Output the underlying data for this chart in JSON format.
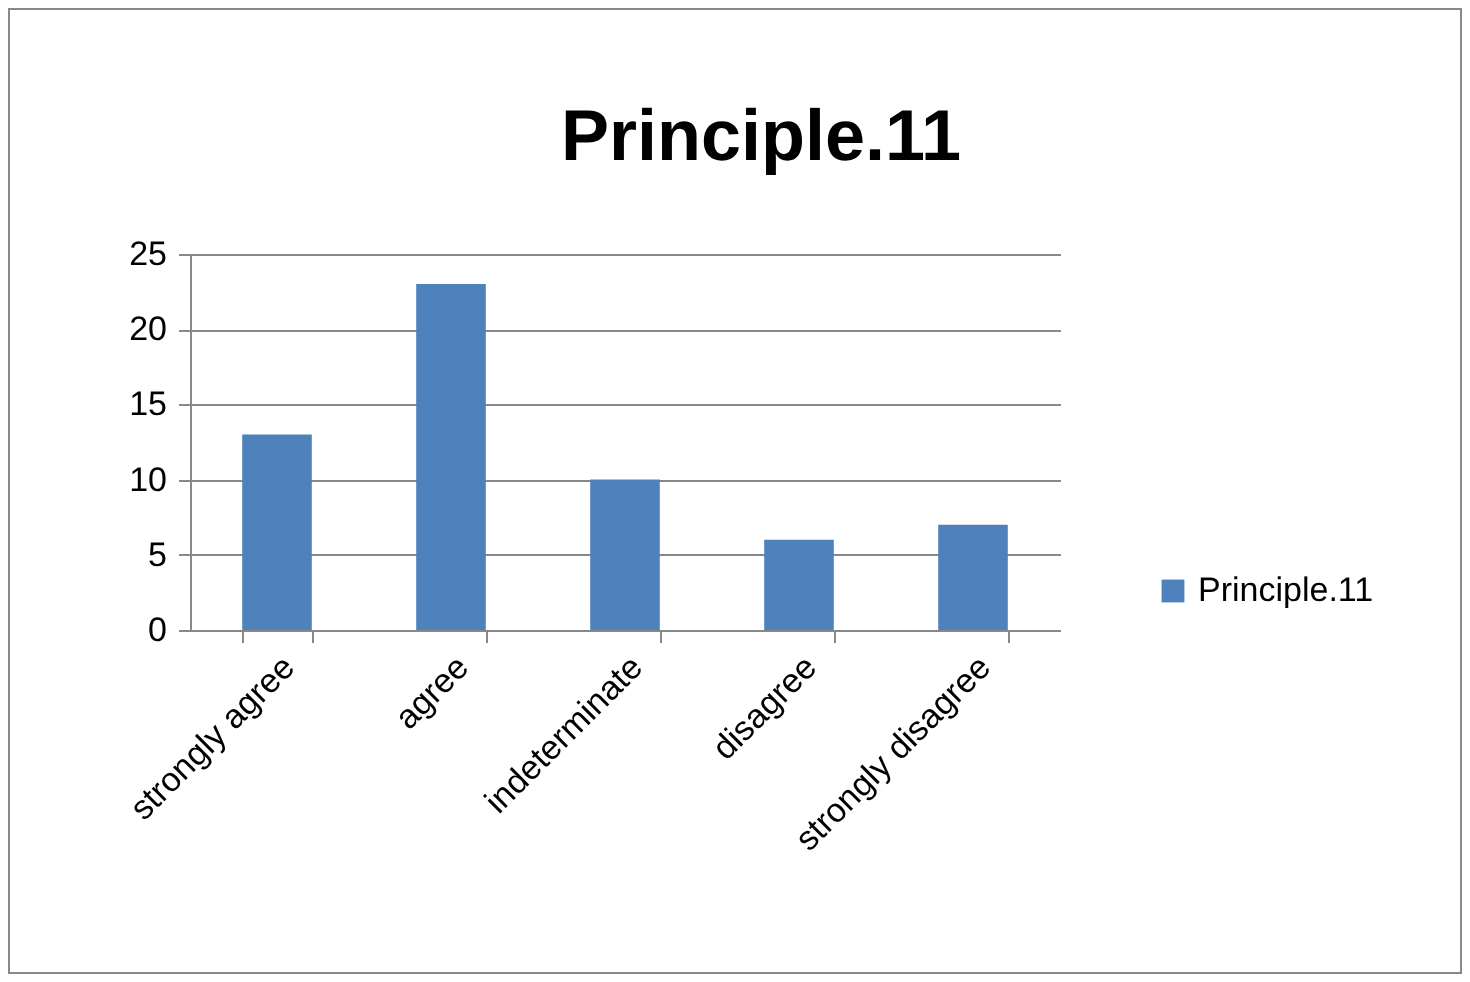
{
  "chart_data": {
    "type": "bar",
    "title": "Principle.11",
    "categories": [
      "strongly agree",
      "agree",
      "indeterminate",
      "disagree",
      "strongly disagree"
    ],
    "series": [
      {
        "name": "Principle.11",
        "color": "#4f81bd",
        "values": [
          13,
          23,
          10,
          6,
          7
        ]
      }
    ],
    "ylim": [
      0,
      25
    ],
    "yticks": [
      0,
      5,
      10,
      15,
      20,
      25
    ],
    "grid": "y",
    "legend": "right"
  }
}
